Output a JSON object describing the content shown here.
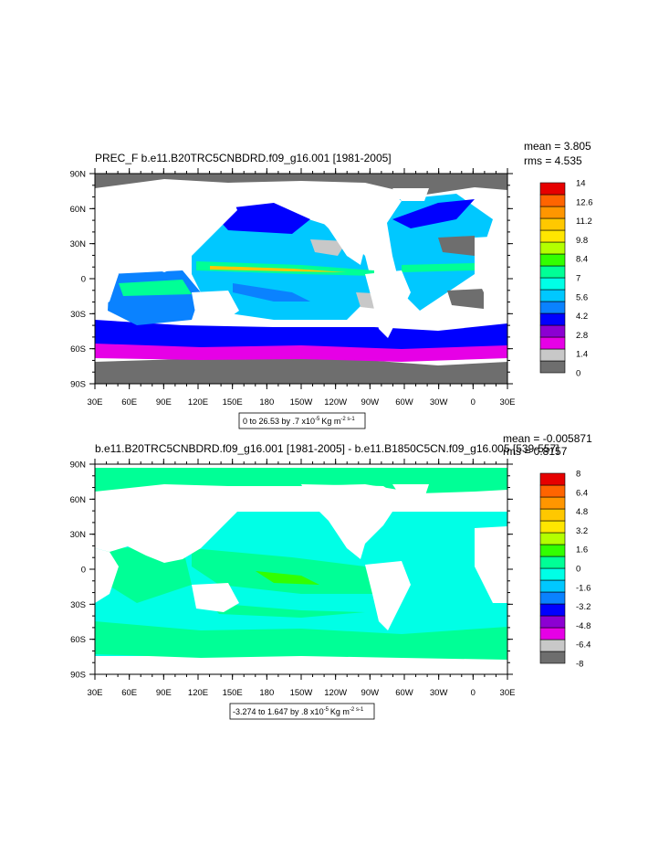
{
  "panels": [
    {
      "title": "PREC_F b.e11.B20TRC5CNBDRD.f09_g16.001 [1981-2005]",
      "stats": [
        "mean = 3.805",
        "rms = 4.535"
      ],
      "range_text": "0 to 26.53 by .7 x10",
      "range_exp": "-5",
      "range_units": "Kg m",
      "range_units_exp": "-2 s-1",
      "colorbar_labels": [
        "14",
        "12.6",
        "11.2",
        "9.8",
        "8.4",
        "7",
        "5.6",
        "4.2",
        "2.8",
        "1.4",
        "0"
      ]
    },
    {
      "title": "b.e11.B20TRC5CNBDRD.f09_g16.001 [1981-2005] - b.e11.B1850C5CN.f09_g16.005 [539-557]",
      "stats": [
        "mean = -0.005871",
        "rms = 0.8157"
      ],
      "range_text": "-3.274 to 1.647 by .8 x10",
      "range_exp": "-5",
      "range_units": "Kg m",
      "range_units_exp": "-2 s-1",
      "colorbar_labels": [
        "8",
        "6.4",
        "4.8",
        "3.2",
        "1.6",
        "0",
        "-1.6",
        "-3.2",
        "-4.8",
        "-6.4",
        "-8"
      ]
    }
  ],
  "chart_data": [
    {
      "type": "heatmap",
      "title": "PREC_F b.e11.B20TRC5CNBDRD.f09_g16.001 [1981-2005]",
      "x_ticks": [
        "30E",
        "60E",
        "90E",
        "120E",
        "150E",
        "180",
        "150W",
        "120W",
        "90W",
        "60W",
        "30W",
        "0",
        "30E"
      ],
      "y_ticks": [
        "90N",
        "60N",
        "30N",
        "0",
        "30S",
        "60S",
        "90S"
      ],
      "xlim": [
        30,
        390
      ],
      "ylim": [
        -90,
        90
      ],
      "colorbar": {
        "levels": [
          0,
          1.4,
          2.8,
          4.2,
          5.6,
          7,
          8.4,
          9.8,
          11.2,
          12.6,
          14
        ],
        "colors": [
          "#6e6e6e",
          "#c8c8c8",
          "#e600e6",
          "#8c00d2",
          "#0000ff",
          "#0a82ff",
          "#00c8ff",
          "#00ffe6",
          "#00ff96",
          "#32ff00",
          "#b4ff00",
          "#ffe600",
          "#ffc800",
          "#ff9600",
          "#ff6400",
          "#e60000"
        ]
      },
      "stats": {
        "mean": 3.805,
        "rms": 4.535
      },
      "range": {
        "min": 0,
        "max": 26.53,
        "interval": 0.7,
        "scale": "x10-5",
        "units": "Kg m-2 s-1"
      }
    },
    {
      "type": "heatmap",
      "title": "b.e11.B20TRC5CNBDRD.f09_g16.001 [1981-2005] - b.e11.B1850C5CN.f09_g16.005 [539-557]",
      "x_ticks": [
        "30E",
        "60E",
        "90E",
        "120E",
        "150E",
        "180",
        "150W",
        "120W",
        "90W",
        "60W",
        "30W",
        "0",
        "30E"
      ],
      "y_ticks": [
        "90N",
        "60N",
        "30N",
        "0",
        "30S",
        "60S",
        "90S"
      ],
      "xlim": [
        30,
        390
      ],
      "ylim": [
        -90,
        90
      ],
      "colorbar": {
        "levels": [
          -8,
          -6.4,
          -4.8,
          -3.2,
          -1.6,
          0,
          1.6,
          3.2,
          4.8,
          6.4,
          8
        ],
        "colors": [
          "#6e6e6e",
          "#c8c8c8",
          "#e600e6",
          "#8c00d2",
          "#0000ff",
          "#0a82ff",
          "#00c8ff",
          "#00ffe6",
          "#00ff96",
          "#32ff00",
          "#b4ff00",
          "#ffe600",
          "#ffc800",
          "#ff9600",
          "#ff6400",
          "#e60000"
        ]
      },
      "stats": {
        "mean": -0.005871,
        "rms": 0.8157
      },
      "range": {
        "min": -3.274,
        "max": 1.647,
        "interval": 0.8,
        "scale": "x10-5",
        "units": "Kg m-2 s-1"
      }
    }
  ]
}
